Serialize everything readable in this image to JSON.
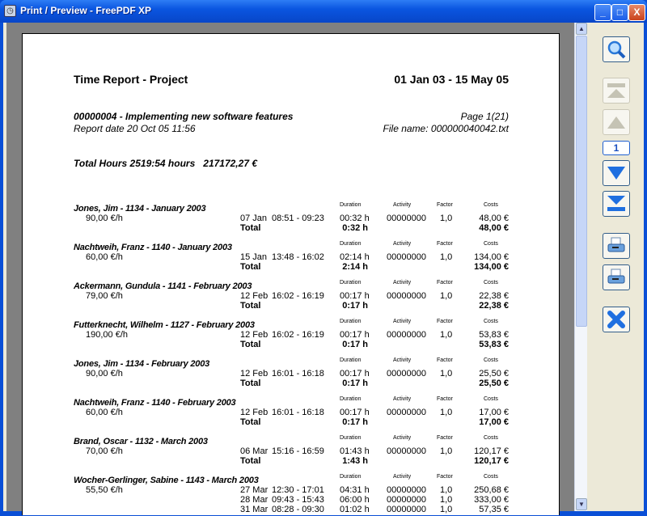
{
  "window": {
    "title": "Print / Preview - FreePDF XP",
    "minimize": "_",
    "maximize": "□",
    "close": "X"
  },
  "toolbar": {
    "page_number": "1",
    "buttons": [
      "zoom",
      "first-page",
      "previous-page",
      "next-page",
      "last-page",
      "print",
      "print-setup",
      "close"
    ]
  },
  "report": {
    "title": "Time Report - Project",
    "date_range": "01 Jan 03 - 15 May 05",
    "project": "00000004 - Implementing new software features",
    "page": "Page 1(21)",
    "report_date": "Report date 20 Oct 05 11:56",
    "file_name": "File name: 000000040042.txt",
    "total": "Total Hours 2519:54 hours   217172,27 €",
    "headers": {
      "duration": "Duration",
      "activity": "Activity",
      "factor": "Factor",
      "costs": "Costs"
    },
    "total_label": "Total",
    "entries": [
      {
        "name": "Jones, Jim - 1134 - January 2003",
        "rate": "90,00 €/h",
        "rows": [
          {
            "date": "07 Jan",
            "time": "08:51 - 09:23",
            "duration": "00:32 h",
            "activity": "00000000",
            "factor": "1,0",
            "cost": "48,00 €"
          }
        ],
        "total_duration": "0:32 h",
        "total_cost": "48,00 €"
      },
      {
        "name": "Nachtweih, Franz - 1140 - January 2003",
        "rate": "60,00 €/h",
        "rows": [
          {
            "date": "15 Jan",
            "time": "13:48 - 16:02",
            "duration": "02:14 h",
            "activity": "00000000",
            "factor": "1,0",
            "cost": "134,00 €"
          }
        ],
        "total_duration": "2:14 h",
        "total_cost": "134,00 €"
      },
      {
        "name": "Ackermann, Gundula - 1141 - February 2003",
        "rate": "79,00 €/h",
        "rows": [
          {
            "date": "12 Feb",
            "time": "16:02 - 16:19",
            "duration": "00:17 h",
            "activity": "00000000",
            "factor": "1,0",
            "cost": "22,38 €"
          }
        ],
        "total_duration": "0:17 h",
        "total_cost": "22,38 €"
      },
      {
        "name": "Futterknecht, Wilhelm - 1127 - February 2003",
        "rate": "190,00 €/h",
        "rows": [
          {
            "date": "12 Feb",
            "time": "16:02 - 16:19",
            "duration": "00:17 h",
            "activity": "00000000",
            "factor": "1,0",
            "cost": "53,83 €"
          }
        ],
        "total_duration": "0:17 h",
        "total_cost": "53,83 €"
      },
      {
        "name": "Jones, Jim - 1134 - February 2003",
        "rate": "90,00 €/h",
        "rows": [
          {
            "date": "12 Feb",
            "time": "16:01 - 16:18",
            "duration": "00:17 h",
            "activity": "00000000",
            "factor": "1,0",
            "cost": "25,50 €"
          }
        ],
        "total_duration": "0:17 h",
        "total_cost": "25,50 €"
      },
      {
        "name": "Nachtweih, Franz - 1140 - February 2003",
        "rate": "60,00 €/h",
        "rows": [
          {
            "date": "12 Feb",
            "time": "16:01 - 16:18",
            "duration": "00:17 h",
            "activity": "00000000",
            "factor": "1,0",
            "cost": "17,00 €"
          }
        ],
        "total_duration": "0:17 h",
        "total_cost": "17,00 €"
      },
      {
        "name": "Brand, Oscar - 1132 - March 2003",
        "rate": "70,00 €/h",
        "rows": [
          {
            "date": "06 Mar",
            "time": "15:16 - 16:59",
            "duration": "01:43 h",
            "activity": "00000000",
            "factor": "1,0",
            "cost": "120,17 €"
          }
        ],
        "total_duration": "1:43 h",
        "total_cost": "120,17 €"
      },
      {
        "name": "Wocher-Gerlinger, Sabine - 1143 - March 2003",
        "rate": "55,50 €/h",
        "rows": [
          {
            "date": "27 Mar",
            "time": "12:30 - 17:01",
            "duration": "04:31 h",
            "activity": "00000000",
            "factor": "1,0",
            "cost": "250,68 €"
          },
          {
            "date": "28 Mar",
            "time": "09:43 - 15:43",
            "duration": "06:00 h",
            "activity": "00000000",
            "factor": "1,0",
            "cost": "333,00 €"
          },
          {
            "date": "31 Mar",
            "time": "08:28 - 09:30",
            "duration": "01:02 h",
            "activity": "00000000",
            "factor": "1,0",
            "cost": "57,35 €"
          }
        ]
      }
    ]
  }
}
